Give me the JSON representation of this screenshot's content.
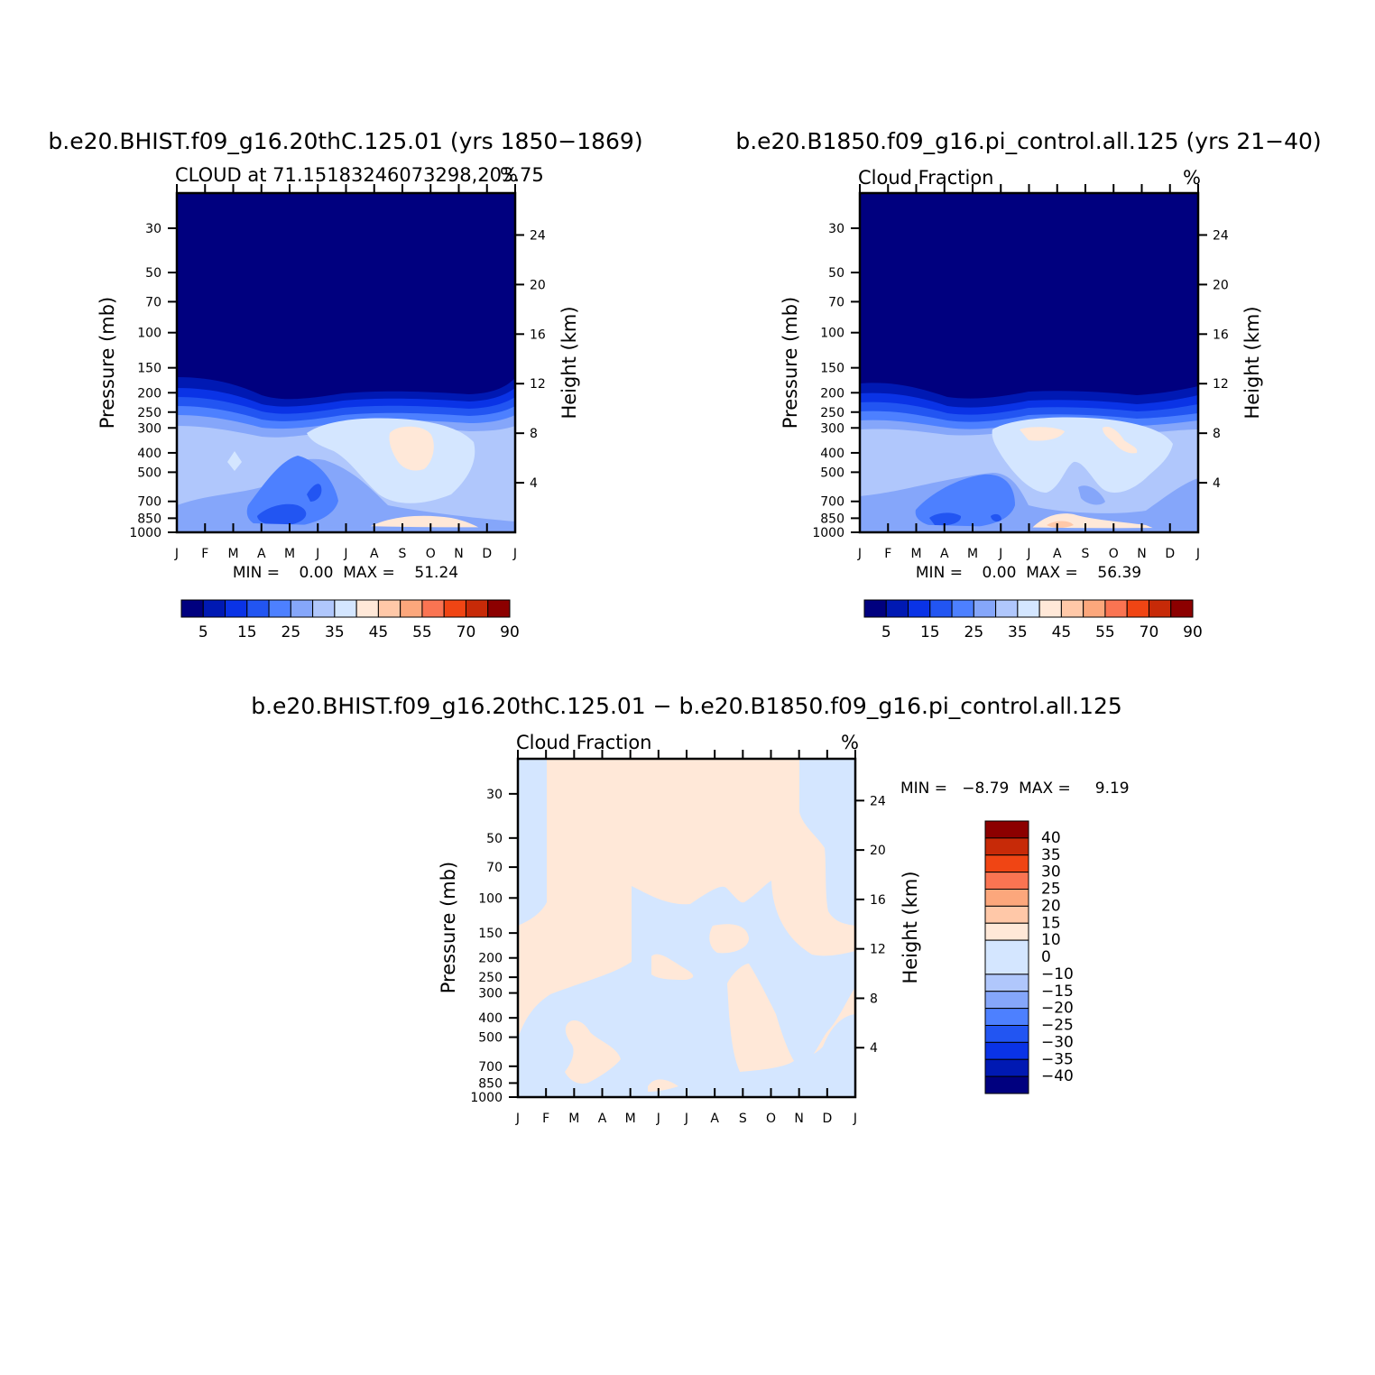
{
  "colorbar_colors": [
    "#00007f",
    "#0019b3",
    "#0a33e6",
    "#2255f2",
    "#4d80ff",
    "#85a6fa",
    "#b0c7fc",
    "#d4e6ff",
    "#ffe8d8",
    "#ffc8a8",
    "#fca77c",
    "#fa7452",
    "#f04514",
    "#c72a08",
    "#8c0000"
  ],
  "diff_colors": [
    "#00007f",
    "#0019b3",
    "#0a33e6",
    "#2255f2",
    "#4d80ff",
    "#85a6fa",
    "#b0c7fc",
    "#d4e6ff",
    "#ffe8d8",
    "#ffc8a8",
    "#fca77c",
    "#fa7452",
    "#f04514",
    "#c72a08",
    "#8c0000"
  ],
  "chart_data": [
    {
      "type": "heatmap",
      "title": "b.e20.BHIST.f09_g16.20thC.125.01 (yrs 1850−1869)",
      "subtitle_left": "CLOUD at 71.15183246073298,203.75",
      "subtitle_right": "%",
      "ylabel": "Pressure (mb)",
      "ylabel_right": "Height (km)",
      "x_ticks": [
        "J",
        "F",
        "M",
        "A",
        "M",
        "J",
        "J",
        "A",
        "S",
        "O",
        "N",
        "D",
        "J"
      ],
      "y_ticks": [
        "30",
        "50",
        "70",
        "100",
        "150",
        "200",
        "250",
        "300",
        "400",
        "500",
        "700",
        "850",
        "1000"
      ],
      "y_ticks_right": [
        "24",
        "20",
        "16",
        "12",
        "8",
        "4"
      ],
      "stats_label": "MIN =    0.00  MAX =    51.24",
      "min": 0.0,
      "max": 51.24,
      "colorbar_labels": [
        "5",
        "15",
        "25",
        "35",
        "45",
        "55",
        "70",
        "90"
      ]
    },
    {
      "type": "heatmap",
      "title": "b.e20.B1850.f09_g16.pi_control.all.125 (yrs 21−40)",
      "subtitle_left": "Cloud Fraction",
      "subtitle_right": "%",
      "ylabel": "Pressure (mb)",
      "ylabel_right": "Height (km)",
      "x_ticks": [
        "J",
        "F",
        "M",
        "A",
        "M",
        "J",
        "J",
        "A",
        "S",
        "O",
        "N",
        "D",
        "J"
      ],
      "y_ticks": [
        "30",
        "50",
        "70",
        "100",
        "150",
        "200",
        "250",
        "300",
        "400",
        "500",
        "700",
        "850",
        "1000"
      ],
      "y_ticks_right": [
        "24",
        "20",
        "16",
        "12",
        "8",
        "4"
      ],
      "stats_label": "MIN =    0.00  MAX =    56.39",
      "min": 0.0,
      "max": 56.39,
      "colorbar_labels": [
        "5",
        "15",
        "25",
        "35",
        "45",
        "55",
        "70",
        "90"
      ]
    },
    {
      "type": "heatmap",
      "title": "b.e20.BHIST.f09_g16.20thC.125.01 − b.e20.B1850.f09_g16.pi_control.all.125",
      "subtitle_left": "Cloud Fraction",
      "subtitle_right": "%",
      "ylabel": "Pressure (mb)",
      "ylabel_right": "Height (km)",
      "x_ticks": [
        "J",
        "F",
        "M",
        "A",
        "M",
        "J",
        "J",
        "A",
        "S",
        "O",
        "N",
        "D",
        "J"
      ],
      "y_ticks": [
        "30",
        "50",
        "70",
        "100",
        "150",
        "200",
        "250",
        "300",
        "400",
        "500",
        "700",
        "850",
        "1000"
      ],
      "y_ticks_right": [
        "24",
        "20",
        "16",
        "12",
        "8",
        "4"
      ],
      "stats_label": "MIN =   −8.79  MAX =     9.19",
      "min": -8.79,
      "max": 9.19,
      "colorbar_labels": [
        "40",
        "35",
        "30",
        "25",
        "20",
        "15",
        "10",
        "0",
        "−10",
        "−15",
        "−20",
        "−25",
        "−30",
        "−35",
        "−40"
      ]
    }
  ]
}
